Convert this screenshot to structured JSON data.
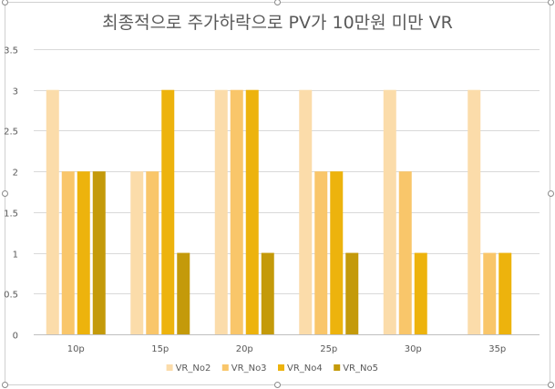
{
  "chart_data": {
    "type": "bar",
    "title": "최종적으로 주가하락으로 PV가 10만원 미만 VR",
    "categories": [
      "10p",
      "15p",
      "20p",
      "25p",
      "30p",
      "35p"
    ],
    "ylim": [
      0,
      3.5
    ],
    "yticks": [
      "0",
      "0.5",
      "1",
      "1.5",
      "2",
      "2.5",
      "3",
      "3.5"
    ],
    "grid": true,
    "legend_position": "bottom",
    "series": [
      {
        "name": "VR_No2",
        "color": "#fbdcaa",
        "values": [
          3,
          2,
          3,
          3,
          3,
          3
        ]
      },
      {
        "name": "VR_No3",
        "color": "#f9c66a",
        "values": [
          2,
          2,
          3,
          2,
          2,
          1
        ]
      },
      {
        "name": "VR_No4",
        "color": "#edb30d",
        "values": [
          2,
          3,
          3,
          2,
          1,
          1
        ]
      },
      {
        "name": "VR_No5",
        "color": "#c49a0a",
        "values": [
          2,
          1,
          1,
          1,
          0,
          0
        ]
      }
    ]
  }
}
